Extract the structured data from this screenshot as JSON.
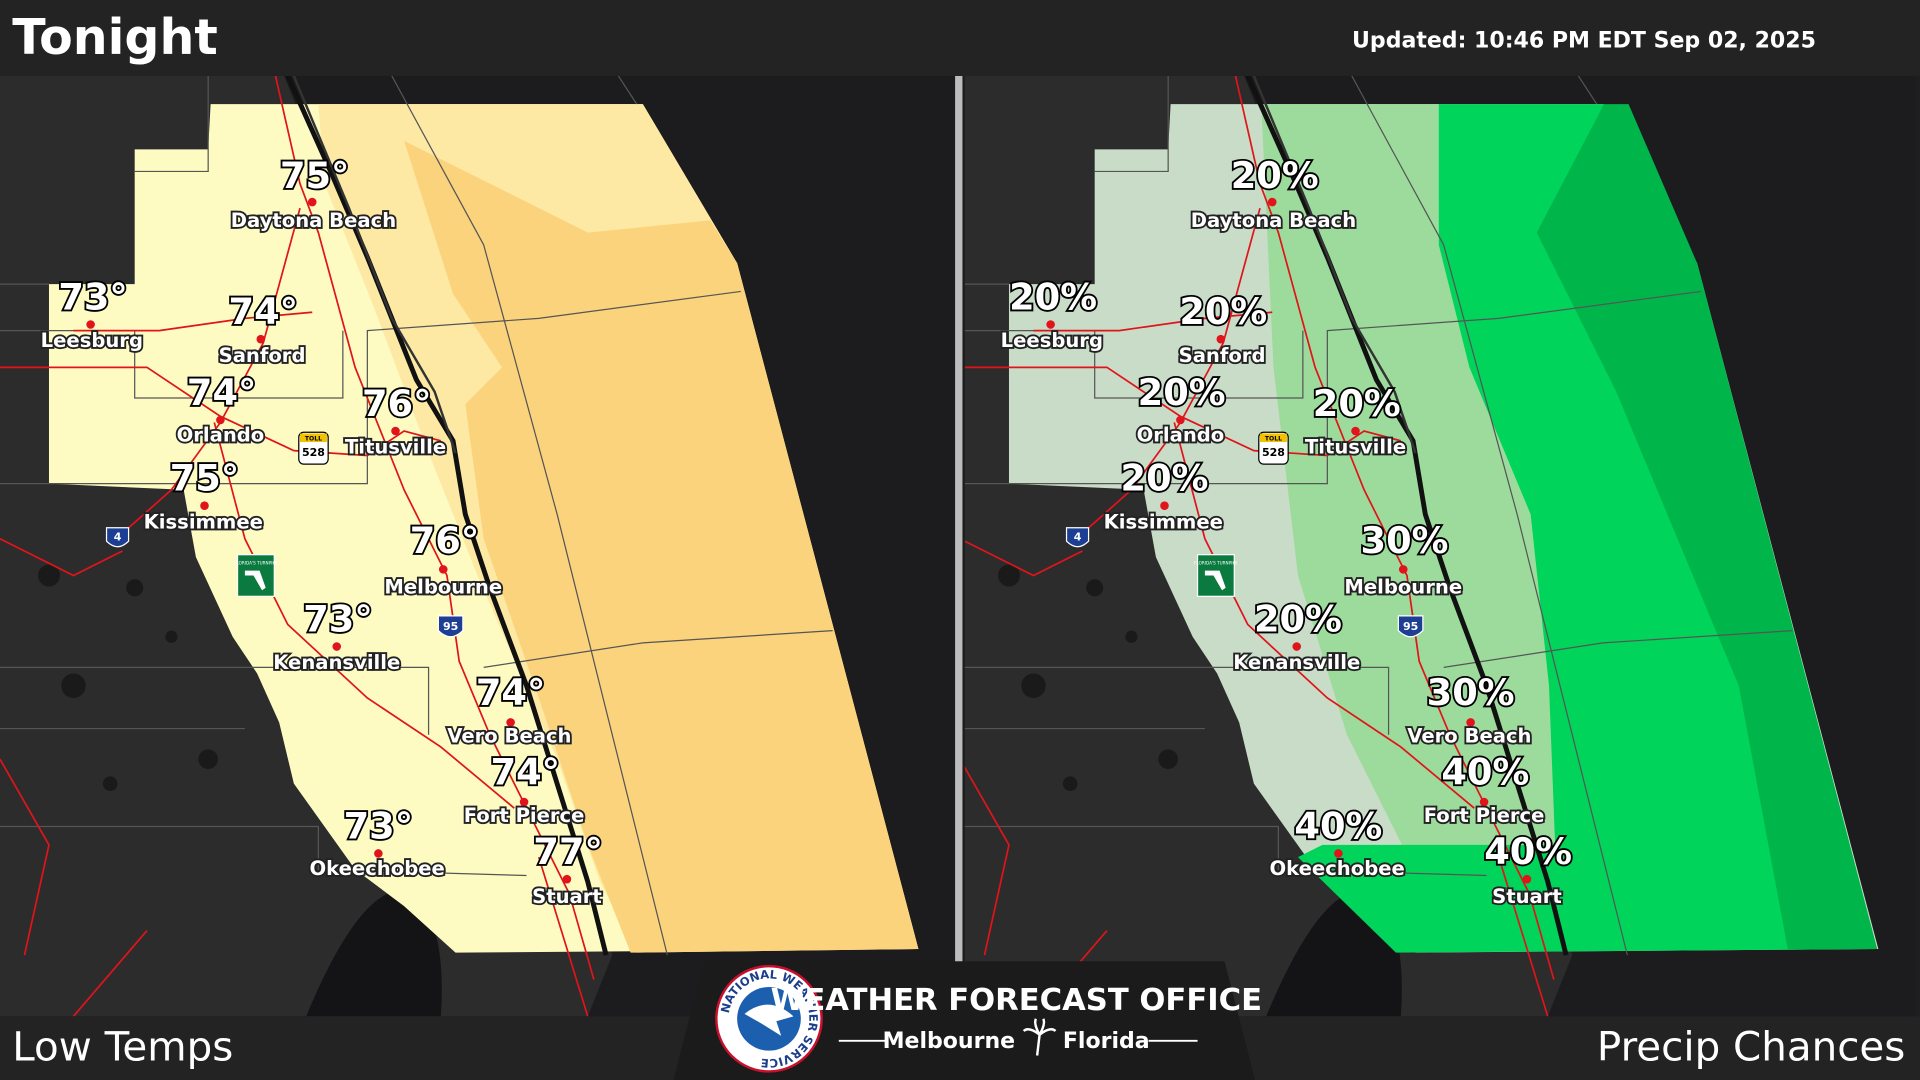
{
  "header": {
    "title": "Tonight",
    "updated": "Updated: 10:46 PM EDT Sep 02, 2025"
  },
  "panels": [
    {
      "label": "Low Temps",
      "cities": [
        {
          "name": "Daytona Beach",
          "value": "75°"
        },
        {
          "name": "Leesburg",
          "value": "73°"
        },
        {
          "name": "Sanford",
          "value": "74°"
        },
        {
          "name": "Orlando",
          "value": "74°"
        },
        {
          "name": "Titusville",
          "value": "76°"
        },
        {
          "name": "Kissimmee",
          "value": "75°"
        },
        {
          "name": "Melbourne",
          "value": "76°"
        },
        {
          "name": "Kenansville",
          "value": "73°"
        },
        {
          "name": "Vero Beach",
          "value": "74°"
        },
        {
          "name": "Fort Pierce",
          "value": "74°"
        },
        {
          "name": "Okeechobee",
          "value": "73°"
        },
        {
          "name": "Stuart",
          "value": "77°"
        }
      ]
    },
    {
      "label": "Precip Chances",
      "cities": [
        {
          "name": "Daytona Beach",
          "value": "20%"
        },
        {
          "name": "Leesburg",
          "value": "20%"
        },
        {
          "name": "Sanford",
          "value": "20%"
        },
        {
          "name": "Orlando",
          "value": "20%"
        },
        {
          "name": "Titusville",
          "value": "20%"
        },
        {
          "name": "Kissimmee",
          "value": "20%"
        },
        {
          "name": "Melbourne",
          "value": "30%"
        },
        {
          "name": "Kenansville",
          "value": "20%"
        },
        {
          "name": "Vero Beach",
          "value": "30%"
        },
        {
          "name": "Fort Pierce",
          "value": "40%"
        },
        {
          "name": "Okeechobee",
          "value": "40%"
        },
        {
          "name": "Stuart",
          "value": "40%"
        }
      ]
    }
  ],
  "shields": {
    "toll": "TOLL",
    "sr528": "528",
    "i95": "95",
    "i4": "4",
    "turnpike": "FLORIDA'S TURNPIKE"
  },
  "footer": {
    "office": "WEATHER FORECAST OFFICE",
    "city": "Melbourne",
    "state": "Florida",
    "agency": "NATIONAL WEATHER SERVICE"
  }
}
